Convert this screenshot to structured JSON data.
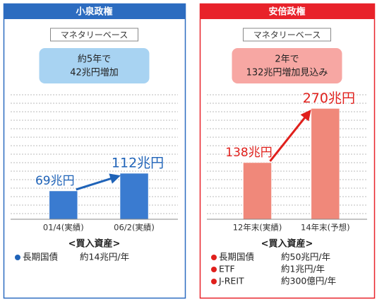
{
  "chart_data": [
    {
      "type": "bar",
      "title": "小泉政権",
      "subtitle": "マネタリーベース",
      "callout": [
        "約5年で",
        "42兆円増加"
      ],
      "categories": [
        "01/4(実績)",
        "06/2(実績)"
      ],
      "values": [
        69,
        112
      ],
      "value_labels": [
        "69兆円",
        "112兆円"
      ],
      "color": "#3a7bd0",
      "header_color": "#2c6cc0",
      "callout_color": "#a8d3f2",
      "label_color": "#1f63b8",
      "assets_title": "<買入資産>",
      "assets": [
        [
          "長期国債",
          "約14兆円/年"
        ]
      ]
    },
    {
      "type": "bar",
      "title": "安倍政権",
      "subtitle": "マネタリーベース",
      "callout": [
        "2年で",
        "132兆円増加見込み"
      ],
      "categories": [
        "12年末(実績)",
        "14年末(予想)"
      ],
      "values": [
        138,
        270
      ],
      "value_labels": [
        "138兆円",
        "270兆円"
      ],
      "color": "#f0887a",
      "header_color": "#e8222a",
      "callout_color": "#f7a7a3",
      "label_color": "#e0201c",
      "assets_title": "<買入資産>",
      "assets": [
        [
          "長期国債",
          "約50兆円/年"
        ],
        [
          "ETF",
          "約1兆円/年"
        ],
        [
          "J-REIT",
          "約300億円/年"
        ]
      ]
    }
  ]
}
